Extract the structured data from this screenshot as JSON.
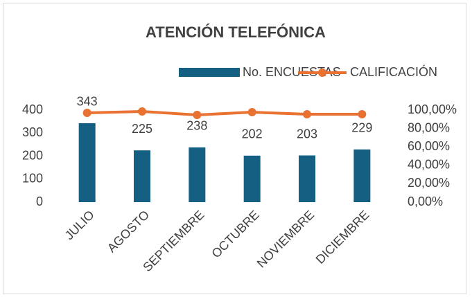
{
  "chart_data": {
    "type": "bar_line",
    "title": "ATENCIÓN TELEFÓNICA",
    "categories": [
      "JULIO",
      "AGOSTO",
      "SEPTIEMBRE",
      "OCTUBRE",
      "NOVIEMBRE",
      "DICIEMBRE"
    ],
    "series": [
      {
        "name": "No. ENCUESTAS",
        "type": "bar",
        "color": "#156082",
        "values": [
          343,
          225,
          238,
          202,
          203,
          229
        ]
      },
      {
        "name": "CALIFICACIÓN",
        "type": "line",
        "color": "#e97132",
        "axis": "y2",
        "values": [
          97,
          98.5,
          94.7,
          97.7,
          95.5,
          95.5
        ]
      }
    ],
    "ylim": [
      0,
      400
    ],
    "yticks": [
      0,
      100,
      200,
      300,
      400
    ],
    "y2lim": [
      0,
      100
    ],
    "y2ticks": [
      {
        "value": 0,
        "label": "0,00%"
      },
      {
        "value": 20,
        "label": "20,00%"
      },
      {
        "value": 40,
        "label": "40,00%"
      },
      {
        "value": 60,
        "label": "60,00%"
      },
      {
        "value": 80,
        "label": "80,00%"
      },
      {
        "value": 100,
        "label": "100,00%"
      }
    ],
    "legend": "top",
    "grid": false
  }
}
